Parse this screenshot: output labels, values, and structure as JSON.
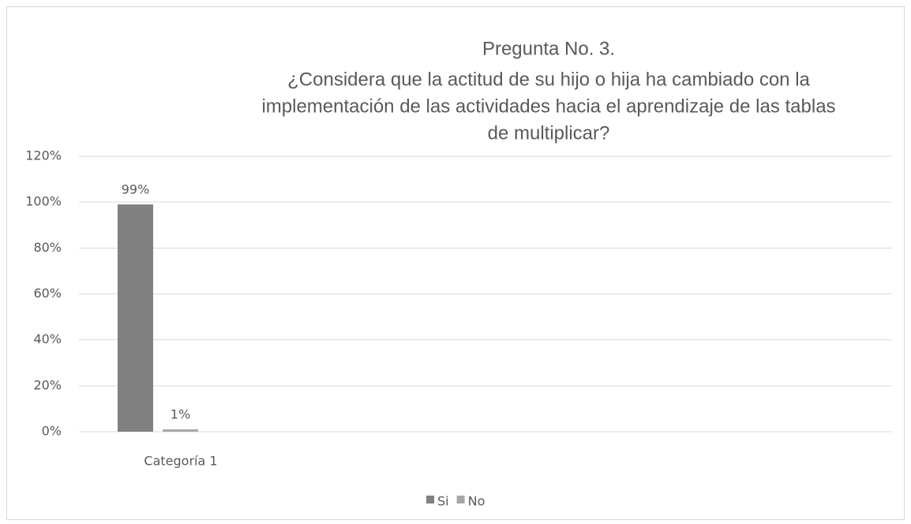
{
  "chart_data": {
    "type": "bar",
    "title": "Pregunta No. 3.",
    "subtitle": [
      "¿Considera que la actitud de su hijo o hija ha cambiado con la",
      "implementación de las actividades hacia el aprendizaje de las tablas",
      "de multiplicar?"
    ],
    "categories": [
      "Categoría 1"
    ],
    "series": [
      {
        "name": "Si",
        "color": "#808080",
        "values": [
          99
        ],
        "value_labels": [
          "99%"
        ]
      },
      {
        "name": "No",
        "color": "#a6a6a6",
        "values": [
          1
        ],
        "value_labels": [
          "1%"
        ]
      }
    ],
    "ylim": [
      0,
      120
    ],
    "yticks": [
      {
        "value": 0,
        "label": "0%"
      },
      {
        "value": 20,
        "label": "20%"
      },
      {
        "value": 40,
        "label": "40%"
      },
      {
        "value": 60,
        "label": "60%"
      },
      {
        "value": 80,
        "label": "80%"
      },
      {
        "value": 100,
        "label": "100%"
      },
      {
        "value": 120,
        "label": "120%"
      }
    ],
    "grid": true,
    "legend": "bottom"
  }
}
